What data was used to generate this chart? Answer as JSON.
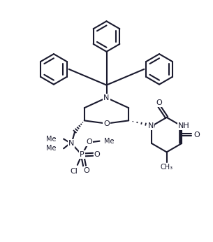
{
  "background_color": "#ffffff",
  "line_color": "#1a1a2e",
  "line_width": 1.5,
  "font_size": 7.5,
  "fig_width": 3.05,
  "fig_height": 3.46,
  "dpi": 100,
  "xlim": [
    0,
    10
  ],
  "ylim": [
    0,
    11.4
  ]
}
